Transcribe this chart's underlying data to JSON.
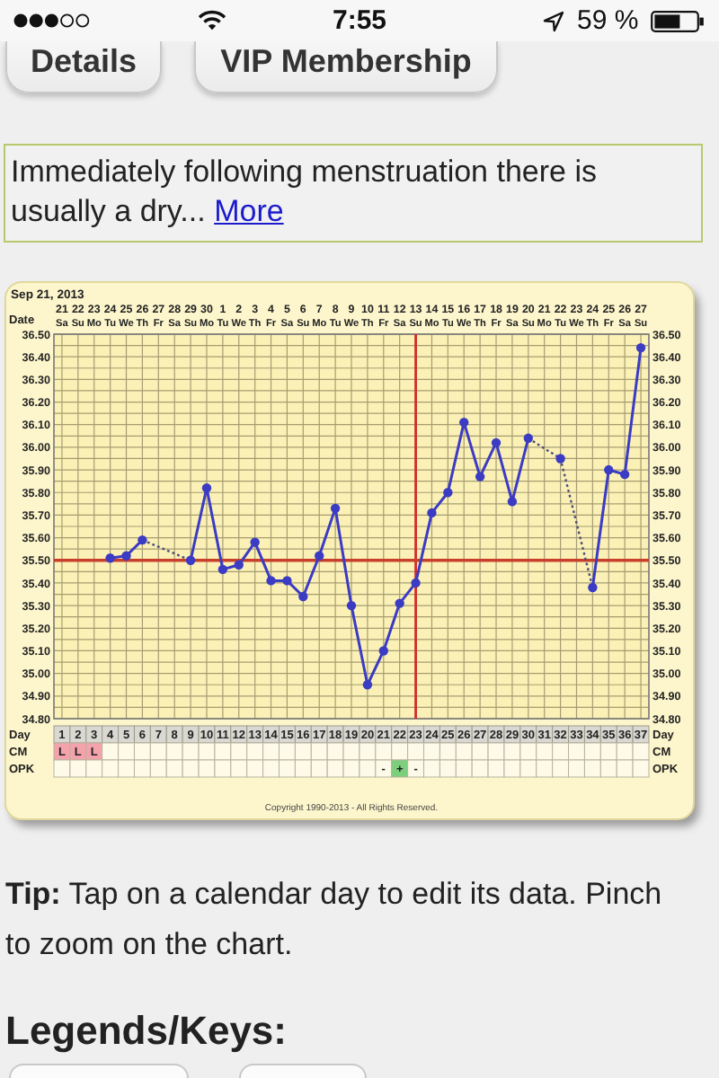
{
  "chart_data": [
    {
      "type": "other",
      "annotations": [
        "7:55",
        "59 %",
        "Details",
        "VIP Membership",
        "Immediately following menstruation there is usually a dry...",
        "More"
      ]
    },
    {
      "type": "line",
      "title": "Sep 21, 2013",
      "xlabel": "Day",
      "x2label": "Date",
      "xlim": [
        0.5,
        37.5
      ],
      "xticks": [
        1,
        2,
        3,
        4,
        5,
        6,
        7,
        8,
        9,
        10,
        11,
        12,
        13,
        14,
        15,
        16,
        17,
        18,
        19,
        20,
        21,
        22,
        23,
        24,
        25,
        26,
        27,
        28,
        29,
        30,
        31,
        32,
        33,
        34,
        35,
        36,
        37
      ],
      "x2lim": [
        "2013-09-20T12:00",
        "2013-10-27T12:00"
      ],
      "x2ticks": [
        {
          "value": "2013-09-21",
          "label": "21 Sa"
        },
        {
          "value": "2013-09-22",
          "label": "22 Su"
        },
        {
          "value": "2013-09-23",
          "label": "23 Mo"
        },
        {
          "value": "2013-09-24",
          "label": "24 Tu"
        },
        {
          "value": "2013-09-25",
          "label": "25 We"
        },
        {
          "value": "2013-09-26",
          "label": "26 Th"
        },
        {
          "value": "2013-09-27",
          "label": "27 Fr"
        },
        {
          "value": "2013-09-28",
          "label": "28 Sa"
        },
        {
          "value": "2013-09-29",
          "label": "29 Su"
        },
        {
          "value": "2013-09-30",
          "label": "30 Mo"
        },
        {
          "value": "2013-10-01",
          "label": "1 Tu"
        },
        {
          "value": "2013-10-02",
          "label": "2 We"
        },
        {
          "value": "2013-10-03",
          "label": "3 Th"
        },
        {
          "value": "2013-10-04",
          "label": "4 Fr"
        },
        {
          "value": "2013-10-05",
          "label": "5 Sa"
        },
        {
          "value": "2013-10-06",
          "label": "6 Su"
        },
        {
          "value": "2013-10-07",
          "label": "7 Mo"
        },
        {
          "value": "2013-10-08",
          "label": "8 Tu"
        },
        {
          "value": "2013-10-09",
          "label": "9 We"
        },
        {
          "value": "2013-10-10",
          "label": "10 Th"
        },
        {
          "value": "2013-10-11",
          "label": "11 Fr"
        },
        {
          "value": "2013-10-12",
          "label": "12 Sa"
        },
        {
          "value": "2013-10-13",
          "label": "13 Su"
        },
        {
          "value": "2013-10-14",
          "label": "14 Mo"
        },
        {
          "value": "2013-10-15",
          "label": "15 Tu"
        },
        {
          "value": "2013-10-16",
          "label": "16 We"
        },
        {
          "value": "2013-10-17",
          "label": "17 Th"
        },
        {
          "value": "2013-10-18",
          "label": "18 Fr"
        },
        {
          "value": "2013-10-19",
          "label": "19 Sa"
        },
        {
          "value": "2013-10-20",
          "label": "20 Su"
        },
        {
          "value": "2013-10-21",
          "label": "21 Mo"
        },
        {
          "value": "2013-10-22",
          "label": "22 Tu"
        },
        {
          "value": "2013-10-23",
          "label": "23 We"
        },
        {
          "value": "2013-10-24",
          "label": "24 Th"
        },
        {
          "value": "2013-10-25",
          "label": "25 Fr"
        },
        {
          "value": "2013-10-26",
          "label": "26 Sa"
        },
        {
          "value": "2013-10-27",
          "label": "27 Su"
        }
      ],
      "ylim": [
        34.8,
        36.5
      ],
      "yticks": [
        {
          "value": 34.8,
          "label": "34.80"
        },
        {
          "value": 34.85,
          "label": null
        },
        {
          "value": 34.9,
          "label": "34.90"
        },
        {
          "value": 34.95,
          "label": null
        },
        {
          "value": 35,
          "label": "35.00"
        },
        {
          "value": 35.05,
          "label": null
        },
        {
          "value": 35.1,
          "label": "35.10"
        },
        {
          "value": 35.15,
          "label": null
        },
        {
          "value": 35.2,
          "label": "35.20"
        },
        {
          "value": 35.25,
          "label": null
        },
        {
          "value": 35.3,
          "label": "35.30"
        },
        {
          "value": 35.35,
          "label": null
        },
        {
          "value": 35.4,
          "label": "35.40"
        },
        {
          "value": 35.45,
          "label": null
        },
        {
          "value": 35.5,
          "label": "35.50"
        },
        {
          "value": 35.55,
          "label": null
        },
        {
          "value": 35.6,
          "label": "35.60"
        },
        {
          "value": 35.65,
          "label": null
        },
        {
          "value": 35.7,
          "label": "35.70"
        },
        {
          "value": 35.75,
          "label": null
        },
        {
          "value": 35.8,
          "label": "35.80"
        },
        {
          "value": 35.85,
          "label": null
        },
        {
          "value": 35.9,
          "label": "35.90"
        },
        {
          "value": 35.95,
          "label": null
        },
        {
          "value": 36,
          "label": "36.00"
        },
        {
          "value": 36.05,
          "label": null
        },
        {
          "value": 36.1,
          "label": "36.10"
        },
        {
          "value": 36.15,
          "label": null
        },
        {
          "value": 36.2,
          "label": "36.20"
        },
        {
          "value": 36.25,
          "label": null
        },
        {
          "value": 36.3,
          "label": "36.30"
        },
        {
          "value": 36.35,
          "label": null
        },
        {
          "value": 36.4,
          "label": "36.40"
        },
        {
          "value": 36.45,
          "label": null
        },
        {
          "value": 36.5,
          "label": "36.50"
        }
      ],
      "y2lim": [
        34.8,
        36.5
      ],
      "y2ticks": [
        {
          "value": 34.8,
          "label": "34.80"
        },
        {
          "value": 34.9,
          "label": "34.90"
        },
        {
          "value": 35,
          "label": "35.00"
        },
        {
          "value": 35.1,
          "label": "35.10"
        },
        {
          "value": 35.2,
          "label": "35.20"
        },
        {
          "value": 35.3,
          "label": "35.30"
        },
        {
          "value": 35.4,
          "label": "35.40"
        },
        {
          "value": 35.5,
          "label": "35.50"
        },
        {
          "value": 35.6,
          "label": "35.60"
        },
        {
          "value": 35.7,
          "label": "35.70"
        },
        {
          "value": 35.8,
          "label": "35.80"
        },
        {
          "value": 35.9,
          "label": "35.90"
        },
        {
          "value": 36,
          "label": "36.00"
        },
        {
          "value": 36.1,
          "label": "36.10"
        },
        {
          "value": 36.2,
          "label": "36.20"
        },
        {
          "value": 36.3,
          "label": "36.30"
        },
        {
          "value": 36.4,
          "label": "36.40"
        },
        {
          "value": 36.5,
          "label": "36.50"
        }
      ],
      "series": [
        {
          "type": "line",
          "x": [
            6,
            9
          ],
          "values": [
            35.59,
            35.5
          ],
          "color": "#50507a",
          "line_style": "dotted",
          "marker": "none"
        },
        {
          "type": "line",
          "x": [
            30,
            32,
            34
          ],
          "values": [
            36.04,
            35.95,
            35.38
          ],
          "color": "#50507a",
          "line_style": "dotted",
          "marker": "none"
        },
        {
          "color": "#3b3bc4",
          "x": [
            4,
            5,
            6,
            7,
            8,
            9,
            10,
            11,
            12,
            13,
            14,
            15,
            16,
            17,
            18,
            19,
            20,
            21,
            22,
            23,
            24,
            25,
            26,
            27,
            28,
            29,
            30,
            31,
            32,
            33,
            34,
            35,
            36,
            37
          ],
          "values": [
            35.51,
            35.52,
            35.59,
            null,
            null,
            35.5,
            35.82,
            35.46,
            35.48,
            35.58,
            35.41,
            35.41,
            35.34,
            35.52,
            35.73,
            35.3,
            34.95,
            35.1,
            35.31,
            35.4,
            35.71,
            35.8,
            36.11,
            35.87,
            36.02,
            35.76,
            36.04,
            null,
            35.95,
            null,
            35.38,
            35.9,
            35.88,
            36.44
          ]
        }
      ],
      "ref_lines": [
        {
          "axis": "x",
          "value": 23,
          "color": "#d42a2a"
        },
        {
          "axis": "y",
          "value": 35.5,
          "color": "#c8402c"
        }
      ],
      "grid": true,
      "marker": "circle",
      "line_style": "solid",
      "annotations": [
        "Copyright 1990-2013 - All Rights Reserved."
      ]
    },
    {
      "type": "other",
      "categories": [
        null,
        null,
        null,
        null,
        null,
        null,
        null,
        null,
        null,
        null,
        null,
        null,
        null,
        null,
        null,
        null,
        null,
        null,
        null,
        null,
        null,
        null,
        null,
        null,
        null,
        null,
        null,
        null,
        null,
        null,
        null,
        null,
        null,
        null,
        null,
        null,
        null
      ],
      "y_categories": [
        "CM",
        "OPK"
      ],
      "y2_categories": [
        "CM",
        "OPK"
      ],
      "cell_labels": [
        [
          "L",
          "L",
          "L",
          null,
          null,
          null,
          null,
          null,
          null,
          null,
          null,
          null,
          null,
          null,
          null,
          null,
          null,
          null,
          null,
          null,
          null,
          null,
          null,
          null,
          null,
          null,
          null,
          null,
          null,
          null,
          null,
          null,
          null,
          null,
          null,
          null,
          null
        ],
        [
          null,
          null,
          null,
          null,
          null,
          null,
          null,
          null,
          null,
          null,
          null,
          null,
          null,
          null,
          null,
          null,
          null,
          null,
          null,
          null,
          "-",
          "+",
          "-",
          null,
          null,
          null,
          null,
          null,
          null,
          null,
          null,
          null,
          null,
          null,
          null,
          null,
          null
        ]
      ],
      "colors": [
        [
          "#f4a3ad",
          "#f4a3ad",
          "#f4a3ad",
          null,
          null,
          null,
          null,
          null,
          null,
          null,
          null,
          null,
          null,
          null,
          null,
          null,
          null,
          null,
          null,
          null,
          null,
          null,
          null,
          null,
          null,
          null,
          null,
          null,
          null,
          null,
          null,
          null,
          null,
          null,
          null,
          null,
          null
        ],
        [
          null,
          null,
          null,
          null,
          null,
          null,
          null,
          null,
          null,
          null,
          null,
          null,
          null,
          null,
          null,
          null,
          null,
          null,
          null,
          null,
          null,
          "#7ccf7c",
          null,
          null,
          null,
          null,
          null,
          null,
          null,
          null,
          null,
          null,
          null,
          null,
          null,
          null,
          null
        ]
      ]
    },
    {
      "type": "other",
      "annotations": [
        "Tip: Tap on a calendar day to edit its data. Pinch to zoom on the chart.",
        "Legends/Keys:"
      ]
    }
  ]
}
